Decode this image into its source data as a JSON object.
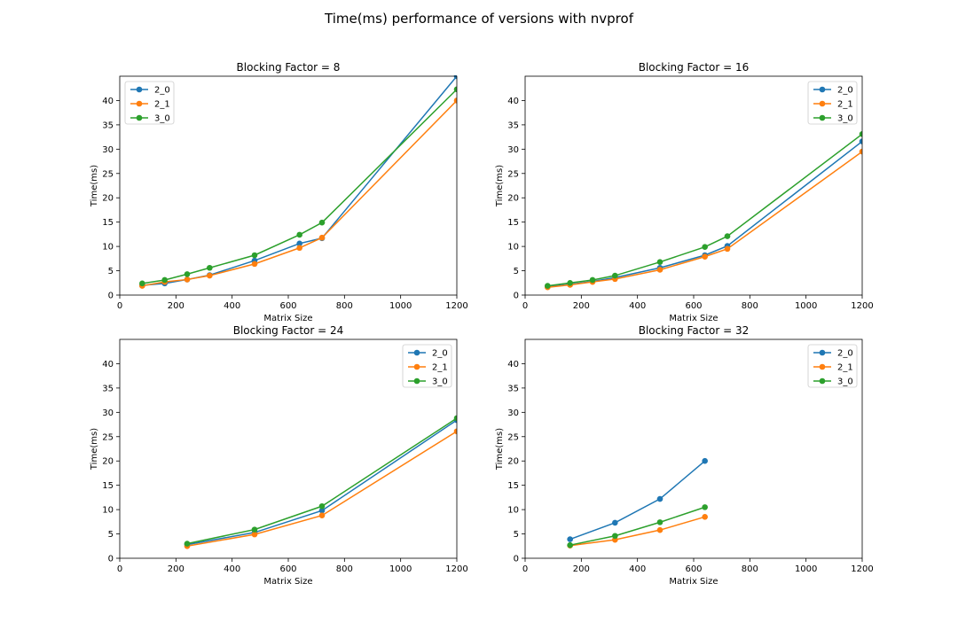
{
  "figure_title": "Time(ms) performance of versions with nvprof",
  "colors": {
    "2_0": "#1f77b4",
    "2_1": "#ff7f0e",
    "3_0": "#2ca02c"
  },
  "chart_data": [
    {
      "type": "line",
      "title": "Blocking Factor = 8",
      "xlabel": "Matrix Size",
      "ylabel": "Time(ms)",
      "xlim": [
        0,
        1200
      ],
      "ylim": [
        0,
        45
      ],
      "xticks": [
        0,
        200,
        400,
        600,
        800,
        1000,
        1200
      ],
      "yticks": [
        0,
        5,
        10,
        15,
        20,
        25,
        30,
        35,
        40
      ],
      "legend_position": "top-left",
      "series": [
        {
          "name": "2_0",
          "x": [
            80,
            160,
            240,
            320,
            480,
            640,
            720,
            1200
          ],
          "y": [
            2.0,
            2.4,
            3.2,
            4.1,
            7.1,
            10.6,
            11.7,
            45.0
          ]
        },
        {
          "name": "2_1",
          "x": [
            80,
            160,
            240,
            320,
            480,
            640,
            720,
            1200
          ],
          "y": [
            1.9,
            2.7,
            3.2,
            4.0,
            6.4,
            9.7,
            11.8,
            40.0
          ]
        },
        {
          "name": "3_0",
          "x": [
            80,
            160,
            240,
            320,
            480,
            640,
            720,
            1200
          ],
          "y": [
            2.4,
            3.1,
            4.3,
            5.6,
            8.2,
            12.4,
            14.9,
            42.3
          ]
        }
      ]
    },
    {
      "type": "line",
      "title": "Blocking Factor = 16",
      "xlabel": "Matrix Size",
      "ylabel": "Time(ms)",
      "xlim": [
        0,
        1200
      ],
      "ylim": [
        0,
        45
      ],
      "xticks": [
        0,
        200,
        400,
        600,
        800,
        1000,
        1200
      ],
      "yticks": [
        0,
        5,
        10,
        15,
        20,
        25,
        30,
        35,
        40
      ],
      "legend_position": "top-right",
      "series": [
        {
          "name": "2_0",
          "x": [
            80,
            160,
            240,
            320,
            480,
            640,
            720,
            1200
          ],
          "y": [
            1.7,
            2.2,
            2.8,
            3.6,
            5.6,
            8.2,
            10.1,
            31.6
          ]
        },
        {
          "name": "2_1",
          "x": [
            80,
            160,
            240,
            320,
            480,
            640,
            720,
            1200
          ],
          "y": [
            1.6,
            2.1,
            2.7,
            3.3,
            5.2,
            7.9,
            9.5,
            29.5
          ]
        },
        {
          "name": "3_0",
          "x": [
            80,
            160,
            240,
            320,
            480,
            640,
            720,
            1200
          ],
          "y": [
            1.9,
            2.5,
            3.1,
            4.0,
            6.8,
            9.9,
            12.1,
            33.1
          ]
        }
      ]
    },
    {
      "type": "line",
      "title": "Blocking Factor = 24",
      "xlabel": "Matrix Size",
      "ylabel": "Time(ms)",
      "xlim": [
        0,
        1200
      ],
      "ylim": [
        0,
        45
      ],
      "xticks": [
        0,
        200,
        400,
        600,
        800,
        1000,
        1200
      ],
      "yticks": [
        0,
        5,
        10,
        15,
        20,
        25,
        30,
        35,
        40
      ],
      "legend_position": "top-right",
      "series": [
        {
          "name": "2_0",
          "x": [
            240,
            480,
            720,
            1200
          ],
          "y": [
            2.8,
            5.3,
            9.8,
            28.4
          ]
        },
        {
          "name": "2_1",
          "x": [
            240,
            480,
            720,
            1200
          ],
          "y": [
            2.5,
            4.9,
            8.8,
            26.1
          ]
        },
        {
          "name": "3_0",
          "x": [
            240,
            480,
            720,
            1200
          ],
          "y": [
            3.0,
            5.9,
            10.7,
            28.8
          ]
        }
      ]
    },
    {
      "type": "line",
      "title": "Blocking Factor = 32",
      "xlabel": "Matrix Size",
      "ylabel": "Time(ms)",
      "xlim": [
        0,
        1200
      ],
      "ylim": [
        0,
        45
      ],
      "xticks": [
        0,
        200,
        400,
        600,
        800,
        1000,
        1200
      ],
      "yticks": [
        0,
        5,
        10,
        15,
        20,
        25,
        30,
        35,
        40
      ],
      "legend_position": "top-right",
      "series": [
        {
          "name": "2_0",
          "x": [
            160,
            320,
            480,
            640
          ],
          "y": [
            3.9,
            7.3,
            12.2,
            20.0
          ]
        },
        {
          "name": "2_1",
          "x": [
            160,
            320,
            480,
            640
          ],
          "y": [
            2.6,
            3.8,
            5.8,
            8.5
          ]
        },
        {
          "name": "3_0",
          "x": [
            160,
            320,
            480,
            640
          ],
          "y": [
            2.7,
            4.6,
            7.4,
            10.5
          ]
        }
      ]
    }
  ]
}
